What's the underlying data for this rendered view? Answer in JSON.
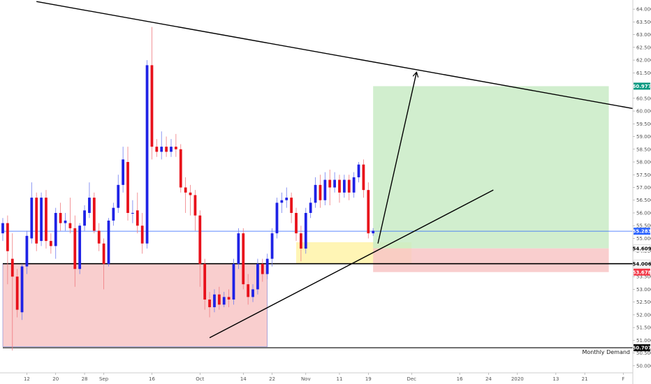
{
  "chart_data": {
    "type": "candlestick",
    "price_scale": {
      "ylim": [
        49.75,
        64.25
      ],
      "ticks": [
        "50.000",
        "50.500",
        "51.000",
        "51.500",
        "52.000",
        "52.500",
        "53.000",
        "53.500",
        "54.000",
        "54.500",
        "55.000",
        "55.500",
        "56.000",
        "56.500",
        "57.000",
        "57.500",
        "58.000",
        "58.500",
        "59.000",
        "59.500",
        "60.000",
        "60.500",
        "61.000",
        "61.500",
        "62.000",
        "62.500",
        "63.000",
        "63.500",
        "64.000"
      ]
    },
    "time_scale": {
      "xlim": [
        0,
        131
      ],
      "ticks": [
        {
          "label": "12",
          "x": 5
        },
        {
          "label": "20",
          "x": 11
        },
        {
          "label": "28",
          "x": 17
        },
        {
          "label": "Sep",
          "x": 21
        },
        {
          "label": "16",
          "x": 31
        },
        {
          "label": "Oct",
          "x": 41
        },
        {
          "label": "14",
          "x": 50
        },
        {
          "label": "22",
          "x": 56
        },
        {
          "label": "Nov",
          "x": 63
        },
        {
          "label": "11",
          "x": 70
        },
        {
          "label": "19",
          "x": 76
        },
        {
          "label": "Dec",
          "x": 85
        },
        {
          "label": "16",
          "x": 95
        },
        {
          "label": "24",
          "x": 101
        },
        {
          "label": "2020",
          "x": 107
        },
        {
          "label": "13",
          "x": 115
        },
        {
          "label": "21",
          "x": 121
        },
        {
          "label": "F",
          "x": 129
        }
      ]
    },
    "candles": [
      {
        "x": 0,
        "o": 55.2,
        "h": 55.8,
        "c": 55.6,
        "l": 54.9
      },
      {
        "x": 1,
        "o": 55.6,
        "h": 55.9,
        "c": 54.5,
        "l": 53.2
      },
      {
        "x": 2,
        "o": 54.2,
        "h": 55.2,
        "c": 53.5,
        "l": 50.6
      },
      {
        "x": 3,
        "o": 53.5,
        "h": 53.8,
        "c": 52.2,
        "l": 51.9
      },
      {
        "x": 4,
        "o": 52.1,
        "h": 54.0,
        "c": 53.9,
        "l": 51.8
      },
      {
        "x": 5,
        "o": 53.9,
        "h": 55.3,
        "c": 55.1,
        "l": 53.6
      },
      {
        "x": 6,
        "o": 55.0,
        "h": 57.2,
        "c": 56.6,
        "l": 54.8
      },
      {
        "x": 7,
        "o": 56.6,
        "h": 56.8,
        "c": 54.8,
        "l": 54.5
      },
      {
        "x": 8,
        "o": 54.9,
        "h": 56.8,
        "c": 56.6,
        "l": 54.7
      },
      {
        "x": 9,
        "o": 56.6,
        "h": 56.9,
        "c": 54.9,
        "l": 54.6
      },
      {
        "x": 10,
        "o": 54.9,
        "h": 55.2,
        "c": 54.7,
        "l": 54.4
      },
      {
        "x": 11,
        "o": 54.7,
        "h": 56.2,
        "c": 56.0,
        "l": 54.2
      },
      {
        "x": 12,
        "o": 56.0,
        "h": 56.4,
        "c": 55.6,
        "l": 55.3
      },
      {
        "x": 13,
        "o": 55.6,
        "h": 56.0,
        "c": 55.7,
        "l": 55.3
      },
      {
        "x": 14,
        "o": 55.6,
        "h": 56.6,
        "c": 55.4,
        "l": 55.2
      },
      {
        "x": 15,
        "o": 55.4,
        "h": 55.9,
        "c": 53.8,
        "l": 53.1
      },
      {
        "x": 16,
        "o": 53.8,
        "h": 55.6,
        "c": 55.5,
        "l": 53.6
      },
      {
        "x": 17,
        "o": 55.5,
        "h": 56.3,
        "c": 56.1,
        "l": 55.3
      },
      {
        "x": 18,
        "o": 56.0,
        "h": 57.2,
        "c": 56.6,
        "l": 55.8
      },
      {
        "x": 19,
        "o": 56.6,
        "h": 56.8,
        "c": 55.3,
        "l": 55.2
      },
      {
        "x": 20,
        "o": 55.3,
        "h": 55.6,
        "c": 54.8,
        "l": 54.5
      },
      {
        "x": 21,
        "o": 54.8,
        "h": 55.0,
        "c": 54.0,
        "l": 53.0
      },
      {
        "x": 22,
        "o": 54.0,
        "h": 55.8,
        "c": 55.7,
        "l": 53.9
      },
      {
        "x": 23,
        "o": 55.7,
        "h": 56.4,
        "c": 56.2,
        "l": 55.5
      },
      {
        "x": 24,
        "o": 56.2,
        "h": 57.5,
        "c": 57.1,
        "l": 56.0
      },
      {
        "x": 25,
        "o": 57.1,
        "h": 58.6,
        "c": 58.1,
        "l": 56.8
      },
      {
        "x": 26,
        "o": 58.0,
        "h": 58.6,
        "c": 56.0,
        "l": 55.7
      },
      {
        "x": 27,
        "o": 56.0,
        "h": 56.5,
        "c": 56.0,
        "l": 55.6
      },
      {
        "x": 28,
        "o": 56.1,
        "h": 56.8,
        "c": 55.5,
        "l": 55.2
      },
      {
        "x": 29,
        "o": 55.5,
        "h": 56.0,
        "c": 54.8,
        "l": 54.4
      },
      {
        "x": 30,
        "o": 54.8,
        "h": 62.0,
        "c": 61.8,
        "l": 54.6
      },
      {
        "x": 31,
        "o": 61.8,
        "h": 63.3,
        "c": 58.6,
        "l": 58.1
      },
      {
        "x": 32,
        "o": 58.6,
        "h": 58.9,
        "c": 58.4,
        "l": 58.2
      },
      {
        "x": 33,
        "o": 58.4,
        "h": 59.2,
        "c": 58.6,
        "l": 58.1
      },
      {
        "x": 34,
        "o": 58.6,
        "h": 59.0,
        "c": 58.4,
        "l": 58.2
      },
      {
        "x": 35,
        "o": 58.4,
        "h": 58.9,
        "c": 58.6,
        "l": 58.2
      },
      {
        "x": 36,
        "o": 58.6,
        "h": 59.1,
        "c": 58.5,
        "l": 58.2
      },
      {
        "x": 37,
        "o": 58.5,
        "h": 58.7,
        "c": 57.0,
        "l": 56.8
      },
      {
        "x": 38,
        "o": 57.0,
        "h": 57.4,
        "c": 56.8,
        "l": 56.0
      },
      {
        "x": 39,
        "o": 56.8,
        "h": 57.1,
        "c": 56.7,
        "l": 55.9
      },
      {
        "x": 40,
        "o": 56.7,
        "h": 56.9,
        "c": 55.9,
        "l": 55.3
      },
      {
        "x": 41,
        "o": 55.9,
        "h": 56.1,
        "c": 54.0,
        "l": 53.1
      },
      {
        "x": 42,
        "o": 54.0,
        "h": 54.2,
        "c": 52.6,
        "l": 52.2
      },
      {
        "x": 43,
        "o": 52.6,
        "h": 52.9,
        "c": 52.3,
        "l": 51.9
      },
      {
        "x": 44,
        "o": 52.3,
        "h": 53.0,
        "c": 52.8,
        "l": 52.1
      },
      {
        "x": 45,
        "o": 52.8,
        "h": 53.1,
        "c": 52.4,
        "l": 52.2
      },
      {
        "x": 46,
        "o": 52.4,
        "h": 52.9,
        "c": 52.7,
        "l": 52.3
      },
      {
        "x": 47,
        "o": 52.7,
        "h": 53.0,
        "c": 52.6,
        "l": 52.3
      },
      {
        "x": 48,
        "o": 52.6,
        "h": 54.2,
        "c": 54.0,
        "l": 52.4
      },
      {
        "x": 49,
        "o": 54.0,
        "h": 55.4,
        "c": 55.2,
        "l": 53.8
      },
      {
        "x": 50,
        "o": 55.2,
        "h": 55.4,
        "c": 53.2,
        "l": 53.0
      },
      {
        "x": 51,
        "o": 53.2,
        "h": 53.6,
        "c": 52.7,
        "l": 52.4
      },
      {
        "x": 52,
        "o": 52.7,
        "h": 53.2,
        "c": 53.0,
        "l": 52.5
      },
      {
        "x": 53,
        "o": 53.0,
        "h": 54.2,
        "c": 54.0,
        "l": 52.8
      },
      {
        "x": 54,
        "o": 54.0,
        "h": 54.2,
        "c": 53.6,
        "l": 53.3
      },
      {
        "x": 55,
        "o": 53.6,
        "h": 54.4,
        "c": 54.2,
        "l": 53.4
      },
      {
        "x": 56,
        "o": 54.2,
        "h": 55.4,
        "c": 55.2,
        "l": 53.9
      },
      {
        "x": 57,
        "o": 55.2,
        "h": 56.6,
        "c": 56.4,
        "l": 55.0
      },
      {
        "x": 58,
        "o": 56.4,
        "h": 56.8,
        "c": 56.5,
        "l": 56.0
      },
      {
        "x": 59,
        "o": 56.5,
        "h": 57.0,
        "c": 56.6,
        "l": 56.2
      },
      {
        "x": 60,
        "o": 56.6,
        "h": 56.8,
        "c": 56.0,
        "l": 55.6
      },
      {
        "x": 61,
        "o": 56.0,
        "h": 56.2,
        "c": 55.2,
        "l": 54.9
      },
      {
        "x": 62,
        "o": 55.2,
        "h": 55.5,
        "c": 54.6,
        "l": 54.1
      },
      {
        "x": 63,
        "o": 54.6,
        "h": 56.2,
        "c": 56.0,
        "l": 54.4
      },
      {
        "x": 64,
        "o": 56.0,
        "h": 56.6,
        "c": 56.4,
        "l": 55.8
      },
      {
        "x": 65,
        "o": 56.4,
        "h": 57.4,
        "c": 57.1,
        "l": 56.2
      },
      {
        "x": 66,
        "o": 57.1,
        "h": 57.5,
        "c": 56.5,
        "l": 56.2
      },
      {
        "x": 67,
        "o": 56.5,
        "h": 57.6,
        "c": 57.3,
        "l": 56.3
      },
      {
        "x": 68,
        "o": 57.3,
        "h": 57.7,
        "c": 57.0,
        "l": 56.3
      },
      {
        "x": 69,
        "o": 57.0,
        "h": 57.6,
        "c": 57.3,
        "l": 56.8
      },
      {
        "x": 70,
        "o": 57.3,
        "h": 57.5,
        "c": 56.8,
        "l": 56.4
      },
      {
        "x": 71,
        "o": 56.8,
        "h": 57.5,
        "c": 57.3,
        "l": 56.6
      },
      {
        "x": 72,
        "o": 57.3,
        "h": 57.5,
        "c": 56.8,
        "l": 56.5
      },
      {
        "x": 73,
        "o": 56.8,
        "h": 57.6,
        "c": 57.4,
        "l": 56.6
      },
      {
        "x": 74,
        "o": 57.4,
        "h": 58.0,
        "c": 57.9,
        "l": 57.2
      },
      {
        "x": 75,
        "o": 57.9,
        "h": 58.1,
        "c": 56.9,
        "l": 56.6
      },
      {
        "x": 76,
        "o": 56.9,
        "h": 57.2,
        "c": 55.2,
        "l": 55.0
      },
      {
        "x": 77,
        "o": 55.2,
        "h": 55.4,
        "c": 55.3,
        "l": 55.1
      }
    ],
    "zones": [
      {
        "name": "monthly-demand-zone",
        "x0": 0,
        "x1": 55,
        "y0": 50.75,
        "y1": 54.0,
        "fill": "#f8c6c6"
      },
      {
        "name": "entry-zone",
        "x0": 61,
        "x1": 85,
        "y0": 54.0,
        "y1": 54.85,
        "fill": "#fff3a8"
      },
      {
        "name": "profit-target-zone",
        "x0": 77,
        "x1": 126,
        "y0": 54.609,
        "y1": 60.977,
        "fill": "#c9ebc6"
      },
      {
        "name": "stop-loss-zone",
        "x0": 77,
        "x1": 126,
        "y0": 53.678,
        "y1": 54.609,
        "fill": "#f8c6c6"
      }
    ],
    "lines": [
      {
        "name": "descending-trendline",
        "x1": 7,
        "y1": 64.3,
        "x2": 131,
        "y2": 60.1,
        "color": "#000000"
      },
      {
        "name": "ascending-trendline",
        "x1": 43,
        "y1": 51.1,
        "x2": 102,
        "y2": 56.9,
        "color": "#000000"
      },
      {
        "name": "projection-arrow",
        "x1": 78,
        "y1": 54.8,
        "x2": 86,
        "y2": 61.5,
        "color": "#000000",
        "arrow": true
      }
    ],
    "horizontals": [
      {
        "name": "support-line",
        "y": 54.006,
        "color": "#000000",
        "width": 1.6
      },
      {
        "name": "monthly-demand-line",
        "y": 50.707,
        "color": "#000000",
        "width": 1.2
      },
      {
        "name": "current-price-line",
        "y": 55.283,
        "color": "#2962ff",
        "width": 0.8
      }
    ],
    "price_tags": [
      {
        "label": "60.977",
        "y": 60.977,
        "bg": "#089981",
        "fg": "#ffffff"
      },
      {
        "label": "55.283",
        "y": 55.283,
        "bg": "#2962ff",
        "fg": "#ffffff"
      },
      {
        "label": "54.609",
        "y": 54.609,
        "bg": "#ffffff",
        "fg": "#000000"
      },
      {
        "label": "54.006",
        "y": 54.006,
        "bg": "#ffffff",
        "fg": "#000000"
      },
      {
        "label": "53.678",
        "y": 53.678,
        "bg": "#f23645",
        "fg": "#ffffff"
      },
      {
        "label": "50.707",
        "y": 50.707,
        "bg": "#000000",
        "fg": "#ffffff"
      }
    ],
    "annotations": [
      {
        "text": "Monthly Demand",
        "y": 50.707
      }
    ],
    "colors": {
      "up": "#1e22e6",
      "down": "#e8101a",
      "wick_up": "#6f7cf0",
      "wick_down": "#f07a7f",
      "axis": "#555555"
    }
  }
}
